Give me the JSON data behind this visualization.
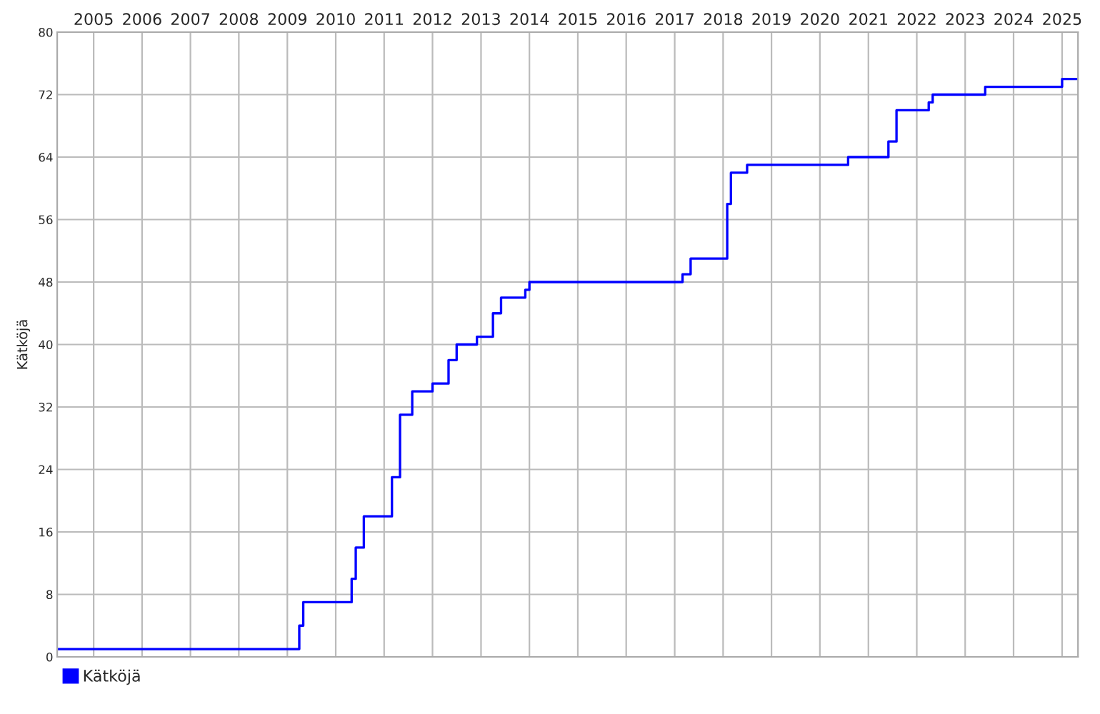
{
  "chart_data": {
    "type": "step",
    "ylabel": "Kätköjä",
    "x": [
      "2004-04",
      "2009-04",
      "2009-05",
      "2010-05",
      "2010-06",
      "2010-08",
      "2011-03",
      "2011-05",
      "2011-08",
      "2012-01",
      "2012-05",
      "2012-07",
      "2012-12",
      "2013-04",
      "2013-06",
      "2013-12",
      "2014-01",
      "2017-03",
      "2017-05",
      "2018-02",
      "2018-03",
      "2018-07",
      "2020-08",
      "2021-06",
      "2021-08",
      "2022-04",
      "2022-05",
      "2023-06",
      "2025-01",
      "2025-05"
    ],
    "series": [
      {
        "name": "Kätköjä",
        "color": "#0000ff",
        "values": [
          1,
          4,
          7,
          10,
          14,
          18,
          23,
          31,
          34,
          35,
          38,
          40,
          41,
          44,
          46,
          47,
          48,
          49,
          51,
          58,
          62,
          63,
          64,
          66,
          70,
          71,
          72,
          73,
          74,
          74
        ]
      }
    ],
    "xlim": [
      "2004-04",
      "2025-05"
    ],
    "xticks": [
      "2005",
      "2006",
      "2007",
      "2008",
      "2009",
      "2010",
      "2011",
      "2012",
      "2013",
      "2014",
      "2015",
      "2016",
      "2017",
      "2018",
      "2019",
      "2020",
      "2021",
      "2022",
      "2023",
      "2024",
      "2025"
    ],
    "ylim": [
      0,
      80
    ],
    "yticks": [
      0,
      8,
      16,
      24,
      32,
      40,
      48,
      56,
      64,
      72,
      80
    ],
    "grid": true,
    "legend": "bottom left",
    "tick_labels": "xy"
  }
}
